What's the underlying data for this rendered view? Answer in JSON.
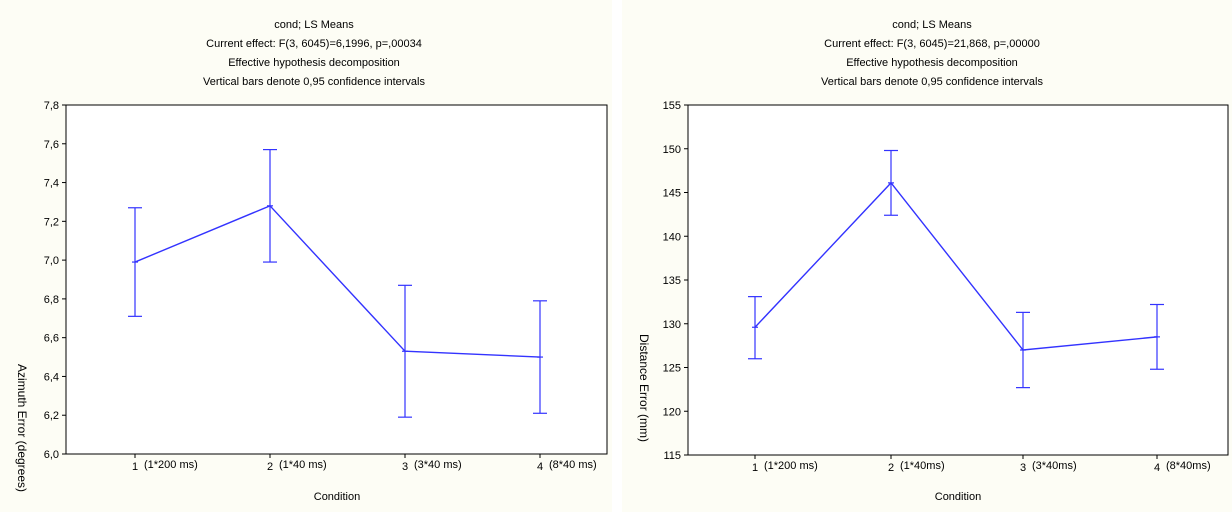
{
  "chart_data": [
    {
      "type": "line",
      "title_lines": [
        "cond; LS Means",
        "Current effect: F(3, 6045)=6,1996, p=,00034",
        "Effective hypothesis decomposition",
        "Vertical bars denote 0,95 confidence intervals"
      ],
      "xlabel": "Condition",
      "ylabel": "Azimuth Error (degrees)",
      "categories": [
        "1",
        "2",
        "3",
        "4"
      ],
      "category_notes": [
        "(1*200 ms)",
        "(1*40 ms)",
        "(3*40 ms)",
        "(8*40 ms)"
      ],
      "ylim": [
        6.0,
        7.8
      ],
      "yticks": [
        6.0,
        6.2,
        6.4,
        6.6,
        6.8,
        7.0,
        7.2,
        7.4,
        7.6,
        7.8
      ],
      "ytick_labels": [
        "6,0",
        "6,2",
        "6,4",
        "6,6",
        "6,8",
        "7,0",
        "7,2",
        "7,4",
        "7,6",
        "7,8"
      ],
      "series": [
        {
          "values": [
            6.99,
            7.28,
            6.53,
            6.5
          ],
          "ci_low": [
            6.71,
            6.99,
            6.19,
            6.21
          ],
          "ci_high": [
            7.27,
            7.57,
            6.87,
            6.79
          ]
        }
      ],
      "grid": false,
      "color": "#3333ff"
    },
    {
      "type": "line",
      "title_lines": [
        "cond; LS Means",
        "Current effect: F(3, 6045)=21,868, p=,00000",
        "Effective hypothesis decomposition",
        "Vertical bars denote 0,95 confidence intervals"
      ],
      "xlabel": "Condition",
      "ylabel": "Distance Error (mm)",
      "categories": [
        "1",
        "2",
        "3",
        "4"
      ],
      "category_notes": [
        "(1*200 ms)",
        "(1*40ms)",
        "(3*40ms)",
        "(8*40ms)"
      ],
      "ylim": [
        115,
        155
      ],
      "yticks": [
        115,
        120,
        125,
        130,
        135,
        140,
        145,
        150,
        155
      ],
      "ytick_labels": [
        "115",
        "120",
        "125",
        "130",
        "135",
        "140",
        "145",
        "150",
        "155"
      ],
      "series": [
        {
          "values": [
            129.6,
            146.1,
            127.0,
            128.5
          ],
          "ci_low": [
            126.0,
            142.4,
            122.7,
            124.8
          ],
          "ci_high": [
            133.1,
            149.8,
            131.3,
            132.2
          ]
        }
      ],
      "grid": false,
      "color": "#3333ff"
    }
  ]
}
